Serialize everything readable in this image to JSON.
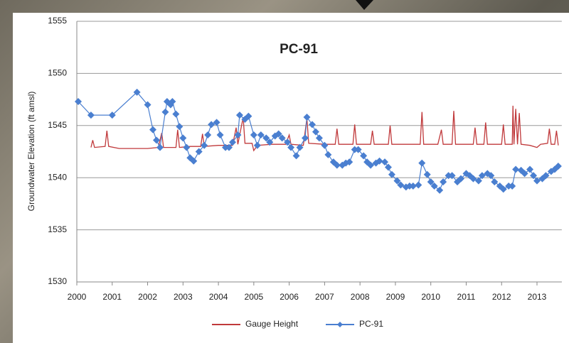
{
  "chart_data": {
    "type": "line",
    "title": "PC-91",
    "y_label": "Groundwater Elevation (ft amsl)",
    "xlim": [
      2000,
      2013.7
    ],
    "xticks": [
      2000,
      2001,
      2002,
      2003,
      2004,
      2005,
      2006,
      2007,
      2008,
      2009,
      2010,
      2011,
      2012,
      2013
    ],
    "ylim": [
      1530,
      1555
    ],
    "yticks": [
      1530,
      1535,
      1540,
      1545,
      1550,
      1555
    ],
    "grid": true,
    "legend": "bottom",
    "series": [
      {
        "name": "Gauge Height",
        "color": "#c0393b",
        "marker": "none",
        "x": [
          2000.4,
          2000.45,
          2000.5,
          2000.8,
          2000.85,
          2000.9,
          2001.2,
          2001.6,
          2002.0,
          2002.3,
          2002.4,
          2002.45,
          2002.8,
          2002.85,
          2002.9,
          2003.2,
          2003.5,
          2003.55,
          2003.6,
          2004.0,
          2004.4,
          2004.5,
          2004.55,
          2004.7,
          2004.75,
          2004.95,
          2005.0,
          2005.1,
          2005.5,
          2005.9,
          2006.0,
          2006.05,
          2006.4,
          2006.5,
          2006.55,
          2007.0,
          2007.3,
          2007.35,
          2007.4,
          2007.8,
          2007.85,
          2007.9,
          2008.3,
          2008.35,
          2008.4,
          2008.8,
          2008.85,
          2008.9,
          2009.3,
          2009.7,
          2009.75,
          2009.8,
          2010.2,
          2010.3,
          2010.35,
          2010.6,
          2010.65,
          2010.7,
          2011.2,
          2011.25,
          2011.3,
          2011.5,
          2011.55,
          2011.6,
          2012.0,
          2012.05,
          2012.1,
          2012.3,
          2012.32,
          2012.35,
          2012.4,
          2012.45,
          2012.5,
          2012.55,
          2012.8,
          2013.0,
          2013.1,
          2013.3,
          2013.35,
          2013.4,
          2013.5,
          2013.55,
          2013.6
        ],
        "values": [
          1542.9,
          1543.6,
          1542.9,
          1543.0,
          1544.5,
          1543.0,
          1542.8,
          1542.8,
          1542.8,
          1542.9,
          1544.3,
          1542.9,
          1542.9,
          1544.6,
          1542.9,
          1543.0,
          1543.0,
          1544.2,
          1543.0,
          1543.1,
          1543.1,
          1544.8,
          1543.2,
          1545.8,
          1543.3,
          1543.3,
          1542.6,
          1543.1,
          1543.2,
          1543.2,
          1544.1,
          1543.2,
          1543.1,
          1545.7,
          1543.3,
          1543.2,
          1543.2,
          1544.7,
          1543.2,
          1543.2,
          1545.1,
          1543.2,
          1543.2,
          1544.5,
          1543.2,
          1543.2,
          1545.0,
          1543.2,
          1543.2,
          1543.2,
          1546.3,
          1543.2,
          1543.2,
          1544.6,
          1543.2,
          1543.2,
          1546.4,
          1543.2,
          1543.2,
          1544.8,
          1543.2,
          1543.2,
          1545.3,
          1543.2,
          1543.2,
          1545.1,
          1543.2,
          1543.2,
          1546.9,
          1543.2,
          1546.6,
          1543.2,
          1546.2,
          1543.2,
          1543.1,
          1542.9,
          1543.2,
          1543.3,
          1544.7,
          1543.2,
          1543.2,
          1544.5,
          1543.1
        ]
      },
      {
        "name": "PC-91",
        "color": "#4a7fd0",
        "marker": "diamond",
        "x": [
          2000.04,
          2000.4,
          2001.0,
          2001.7,
          2002.0,
          2002.15,
          2002.25,
          2002.35,
          2002.5,
          2002.55,
          2002.65,
          2002.7,
          2002.8,
          2002.9,
          2003.0,
          2003.1,
          2003.2,
          2003.3,
          2003.45,
          2003.6,
          2003.7,
          2003.8,
          2003.95,
          2004.05,
          2004.2,
          2004.3,
          2004.4,
          2004.55,
          2004.6,
          2004.75,
          2004.85,
          2005.0,
          2005.1,
          2005.2,
          2005.35,
          2005.45,
          2005.6,
          2005.7,
          2005.8,
          2005.95,
          2006.05,
          2006.2,
          2006.3,
          2006.45,
          2006.5,
          2006.65,
          2006.75,
          2006.85,
          2007.0,
          2007.1,
          2007.25,
          2007.35,
          2007.5,
          2007.6,
          2007.7,
          2007.85,
          2007.95,
          2008.1,
          2008.2,
          2008.3,
          2008.45,
          2008.55,
          2008.7,
          2008.8,
          2008.9,
          2009.05,
          2009.15,
          2009.3,
          2009.4,
          2009.5,
          2009.65,
          2009.75,
          2009.9,
          2010.0,
          2010.1,
          2010.25,
          2010.35,
          2010.5,
          2010.6,
          2010.75,
          2010.85,
          2011.0,
          2011.1,
          2011.2,
          2011.35,
          2011.45,
          2011.6,
          2011.7,
          2011.8,
          2011.95,
          2012.05,
          2012.2,
          2012.3,
          2012.4,
          2012.55,
          2012.65,
          2012.8,
          2012.9,
          2013.0,
          2013.15,
          2013.25,
          2013.4,
          2013.5,
          2013.6
        ],
        "values": [
          1547.3,
          1546.0,
          1546.0,
          1548.2,
          1547.0,
          1544.6,
          1543.6,
          1542.9,
          1546.3,
          1547.3,
          1547.0,
          1547.3,
          1546.1,
          1544.9,
          1543.8,
          1542.9,
          1541.9,
          1541.6,
          1542.5,
          1543.1,
          1544.1,
          1545.1,
          1545.3,
          1544.1,
          1542.9,
          1542.9,
          1543.4,
          1544.1,
          1546.0,
          1545.6,
          1545.9,
          1544.1,
          1543.1,
          1544.1,
          1543.8,
          1543.4,
          1544.0,
          1544.2,
          1543.8,
          1543.4,
          1542.9,
          1542.1,
          1542.9,
          1543.8,
          1545.8,
          1545.1,
          1544.4,
          1543.8,
          1543.1,
          1542.2,
          1541.5,
          1541.2,
          1541.2,
          1541.4,
          1541.5,
          1542.7,
          1542.7,
          1542.1,
          1541.5,
          1541.2,
          1541.4,
          1541.6,
          1541.5,
          1541.0,
          1540.3,
          1539.7,
          1539.3,
          1539.1,
          1539.2,
          1539.2,
          1539.3,
          1541.4,
          1540.3,
          1539.6,
          1539.2,
          1538.8,
          1539.6,
          1540.2,
          1540.2,
          1539.6,
          1539.9,
          1540.4,
          1540.2,
          1539.9,
          1539.7,
          1540.2,
          1540.4,
          1540.2,
          1539.6,
          1539.2,
          1538.9,
          1539.2,
          1539.2,
          1540.8,
          1540.7,
          1540.4,
          1540.8,
          1540.2,
          1539.7,
          1539.9,
          1540.2,
          1540.6,
          1540.8,
          1541.1
        ]
      }
    ]
  }
}
